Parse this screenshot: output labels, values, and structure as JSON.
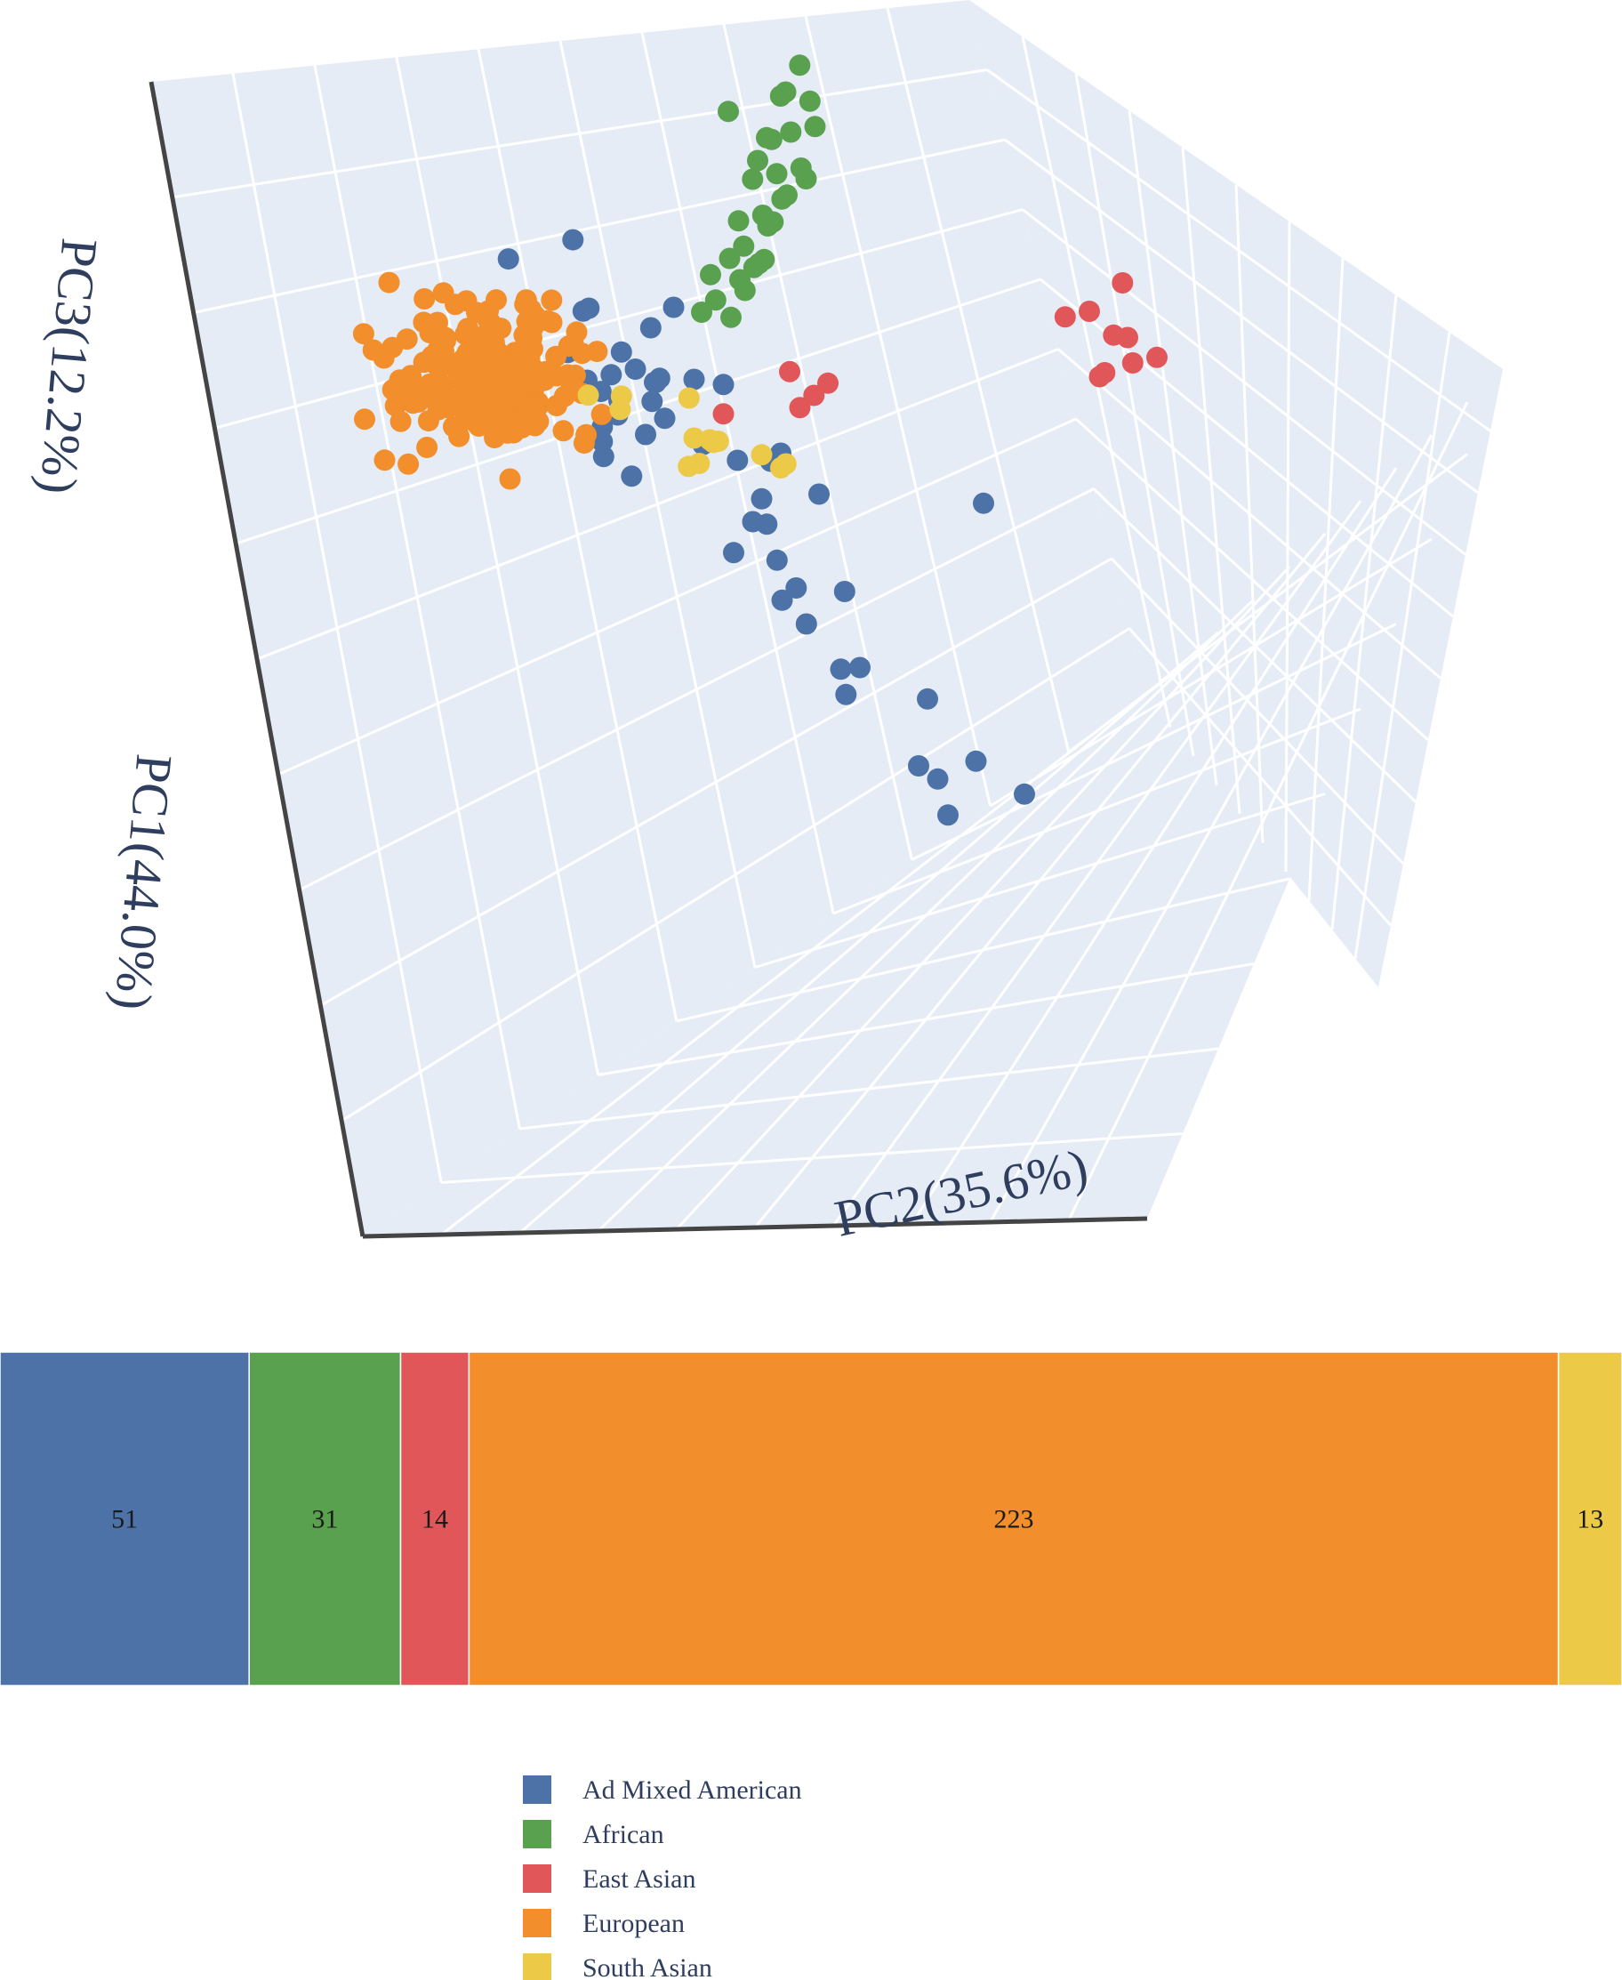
{
  "chart_data": [
    {
      "type": "scatter",
      "subtype": "3d-pca",
      "title": "",
      "axes": {
        "x": {
          "label": "PC1(44.0%)"
        },
        "y": {
          "label": "PC2(35.6%)"
        },
        "z": {
          "label": "PC3(12.2%)"
        }
      },
      "grid": true,
      "series": [
        {
          "name": "Ad Mixed American",
          "color": "#4c72a8",
          "points": [
            [
              -0.15,
              0.05,
              0.72
            ],
            [
              -0.22,
              -0.1,
              0.62
            ],
            [
              -0.05,
              0.05,
              0.55
            ],
            [
              -0.18,
              0.1,
              0.46
            ],
            [
              -0.05,
              0.15,
              0.4
            ],
            [
              -0.1,
              0.2,
              0.3
            ],
            [
              -0.2,
              0.05,
              0.3
            ],
            [
              -0.15,
              0.15,
              0.25
            ],
            [
              -0.1,
              0.25,
              0.25
            ],
            [
              0.1,
              0.3,
              0.4
            ],
            [
              0.1,
              0.1,
              0.3
            ],
            [
              -0.05,
              0.1,
              0.1
            ],
            [
              0.05,
              0.15,
              0.05
            ],
            [
              -0.25,
              0.15,
              0.12
            ],
            [
              -0.2,
              0.1,
              0.2
            ],
            [
              0.15,
              0.05,
              0.2
            ],
            [
              0.0,
              0.2,
              0.15
            ],
            [
              0.2,
              0.35,
              0.45
            ],
            [
              0.1,
              0.2,
              0.4
            ],
            [
              -0.05,
              0.25,
              0.3
            ],
            [
              0.0,
              0.25,
              0.2
            ],
            [
              -0.05,
              0.1,
              0.15
            ],
            [
              0.0,
              0.35,
              0.1
            ],
            [
              0.15,
              0.4,
              0.15
            ],
            [
              0.2,
              0.5,
              0.2
            ],
            [
              0.1,
              0.5,
              0.1
            ],
            [
              0.2,
              0.45,
              0.05
            ],
            [
              0.3,
              0.35,
              -0.05
            ],
            [
              0.25,
              0.45,
              0.0
            ],
            [
              0.3,
              0.4,
              0.05
            ],
            [
              0.2,
              0.6,
              0.05
            ],
            [
              0.35,
              0.45,
              -0.05
            ],
            [
              0.4,
              0.45,
              -0.15
            ],
            [
              0.35,
              0.5,
              -0.15
            ],
            [
              0.45,
              0.5,
              -0.2
            ],
            [
              0.45,
              0.6,
              -0.1
            ],
            [
              0.6,
              0.55,
              -0.25
            ],
            [
              0.6,
              0.6,
              -0.25
            ],
            [
              0.65,
              0.55,
              -0.3
            ],
            [
              0.7,
              0.75,
              -0.3
            ],
            [
              0.8,
              0.7,
              -0.45
            ],
            [
              0.8,
              0.75,
              -0.5
            ],
            [
              0.8,
              0.85,
              -0.45
            ],
            [
              0.9,
              0.75,
              -0.55
            ],
            [
              0.9,
              0.95,
              -0.5
            ],
            [
              0.5,
              0.95,
              0.2
            ],
            [
              0.3,
              0.05,
              0.5
            ],
            [
              0.05,
              0.0,
              0.5
            ],
            [
              -0.1,
              0.3,
              0.5
            ],
            [
              0.05,
              0.2,
              0.55
            ],
            [
              0.25,
              0.15,
              0.45
            ]
          ]
        },
        {
          "name": "African",
          "color": "#59a14f",
          "points": [
            [
              -0.55,
              0.7,
              0.85
            ],
            [
              -0.5,
              0.65,
              0.75
            ],
            [
              -0.45,
              0.7,
              0.8
            ],
            [
              -0.4,
              0.65,
              0.7
            ],
            [
              -0.45,
              0.6,
              0.65
            ],
            [
              -0.35,
              0.6,
              0.6
            ],
            [
              -0.4,
              0.55,
              0.55
            ],
            [
              -0.35,
              0.55,
              0.5
            ],
            [
              -0.3,
              0.5,
              0.5
            ],
            [
              -0.3,
              0.45,
              0.45
            ],
            [
              -0.25,
              0.45,
              0.4
            ],
            [
              -0.2,
              0.4,
              0.4
            ],
            [
              -0.45,
              0.75,
              0.9
            ],
            [
              -0.5,
              0.55,
              0.85
            ],
            [
              -0.4,
              0.75,
              0.85
            ],
            [
              -0.55,
              0.75,
              0.95
            ],
            [
              -0.35,
              0.7,
              0.75
            ],
            [
              -0.3,
              0.65,
              0.7
            ],
            [
              -0.25,
              0.6,
              0.65
            ],
            [
              -0.3,
              0.7,
              0.75
            ],
            [
              -0.2,
              0.55,
              0.55
            ],
            [
              -0.15,
              0.5,
              0.5
            ],
            [
              -0.1,
              0.45,
              0.45
            ],
            [
              -0.15,
              0.55,
              0.6
            ],
            [
              -0.25,
              0.55,
              0.5
            ],
            [
              -0.45,
              0.65,
              0.78
            ],
            [
              -0.5,
              0.7,
              0.9
            ],
            [
              -0.35,
              0.65,
              0.65
            ],
            [
              -0.2,
              0.5,
              0.5
            ],
            [
              -0.3,
              0.6,
              0.6
            ],
            [
              -0.4,
              0.6,
              0.75
            ]
          ]
        },
        {
          "name": "East Asian",
          "color": "#e15759",
          "points": [
            [
              0.6,
              1.2,
              0.9
            ],
            [
              0.55,
              1.15,
              0.85
            ],
            [
              0.65,
              1.25,
              0.85
            ],
            [
              0.6,
              1.3,
              0.8
            ],
            [
              0.7,
              1.2,
              0.75
            ],
            [
              0.65,
              1.3,
              0.75
            ],
            [
              0.7,
              1.35,
              0.8
            ],
            [
              0.55,
              1.3,
              0.95
            ],
            [
              0.75,
              1.2,
              0.8
            ],
            [
              0.1,
              0.55,
              0.4
            ],
            [
              0.15,
              0.6,
              0.35
            ],
            [
              0.2,
              0.55,
              0.35
            ],
            [
              0.1,
              0.65,
              0.35
            ],
            [
              0.2,
              0.35,
              0.35
            ]
          ]
        },
        {
          "name": "European",
          "color": "#f28e2b",
          "count": 223,
          "cluster": {
            "center": [
              -0.05,
              -0.2,
              0.35
            ],
            "spread": [
              0.08,
              0.12,
              0.1
            ]
          }
        },
        {
          "name": "South Asian",
          "color": "#edc948",
          "points": [
            [
              0.1,
              0.3,
              0.2
            ],
            [
              0.1,
              0.35,
              0.18
            ],
            [
              0.15,
              0.3,
              0.15
            ],
            [
              0.15,
              0.35,
              0.22
            ],
            [
              0.12,
              0.28,
              0.12
            ],
            [
              0.2,
              0.5,
              0.15
            ],
            [
              0.2,
              0.45,
              0.2
            ],
            [
              0.25,
              0.5,
              0.2
            ],
            [
              0.05,
              0.3,
              0.3
            ],
            [
              -0.05,
              0.15,
              0.25
            ],
            [
              0.0,
              0.05,
              0.3
            ],
            [
              0.18,
              0.32,
              0.25
            ],
            [
              0.05,
              0.12,
              0.28
            ]
          ]
        }
      ]
    },
    {
      "type": "bar",
      "subtype": "stacked-100",
      "categories": [
        "Ad Mixed American",
        "African",
        "East Asian",
        "European",
        "South Asian"
      ],
      "values": [
        51,
        31,
        14,
        223,
        13
      ],
      "colors": [
        "#4c72a8",
        "#59a14f",
        "#e15759",
        "#f28e2b",
        "#edc948"
      ],
      "labels": [
        "51",
        "31",
        "14",
        "223",
        "13"
      ]
    }
  ],
  "legend": {
    "items": [
      {
        "label": "Ad Mixed American",
        "color": "#4c72a8"
      },
      {
        "label": "African",
        "color": "#59a14f"
      },
      {
        "label": "East Asian",
        "color": "#e15759"
      },
      {
        "label": "European",
        "color": "#f28e2b"
      },
      {
        "label": "South Asian",
        "color": "#edc948"
      }
    ]
  },
  "colors": {
    "scene_bg": "#e5ecf6",
    "grid": "#ffffff",
    "axis_line": "#444444",
    "axis_title": "#2f3e5e"
  }
}
